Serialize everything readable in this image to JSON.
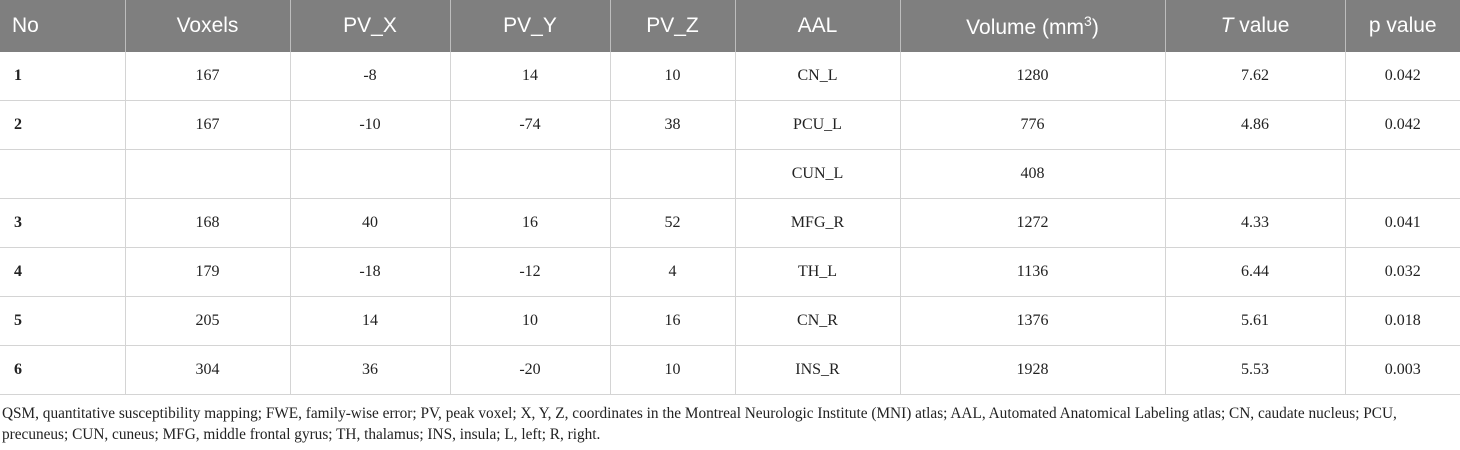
{
  "table": {
    "header": [
      "No",
      "Voxels",
      "PV_X",
      "PV_Y",
      "PV_Z",
      "AAL",
      {
        "main": "Volume (mm",
        "sup": "3",
        "tail": ")"
      },
      {
        "italic": "T",
        "rest": " value"
      },
      "p value"
    ],
    "rows": [
      [
        1,
        167,
        -8,
        14,
        10,
        "CN_L",
        1280,
        7.62,
        0.042
      ],
      [
        2,
        167,
        -10,
        -74,
        38,
        "PCU_L",
        776,
        4.86,
        0.042
      ],
      [
        null,
        null,
        null,
        null,
        null,
        "CUN_L",
        408,
        null,
        null
      ],
      [
        3,
        168,
        40,
        16,
        52,
        "MFG_R",
        1272,
        4.33,
        0.041
      ],
      [
        4,
        179,
        -18,
        -12,
        4,
        "TH_L",
        1136,
        6.44,
        0.032
      ],
      [
        5,
        205,
        14,
        10,
        16,
        "CN_R",
        1376,
        5.61,
        0.018
      ],
      [
        6,
        304,
        36,
        -20,
        10,
        "INS_R",
        1928,
        5.53,
        0.003
      ]
    ]
  },
  "footnote": "QSM, quantitative susceptibility mapping; FWE, family-wise error; PV, peak voxel; X, Y, Z, coordinates in the Montreal Neurologic Institute (MNI) atlas; AAL, Automated Anatomical Labeling atlas; CN, caudate nucleus; PCU, precuneus; CUN, cuneus; MFG, middle frontal gyrus; TH, thalamus; INS, insula; L, left; R, right."
}
